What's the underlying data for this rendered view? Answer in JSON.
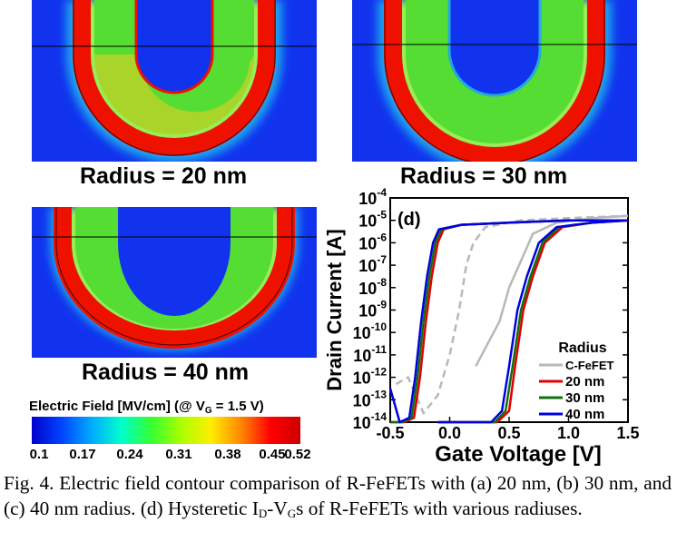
{
  "panels": [
    {
      "label": "Radius = 20 nm"
    },
    {
      "label": "Radius = 30 nm"
    },
    {
      "label": "Radius = 40 nm"
    }
  ],
  "colorbar": {
    "title_main": "Electric Field [MV/cm] (@ V",
    "title_sub": "G",
    "title_end": " = 1.5 V)",
    "ticks": [
      "0.1",
      "0.17",
      "0.24",
      "0.31",
      "0.38",
      "0.45",
      "0.52"
    ],
    "gradient": [
      "#0000cc",
      "#0044ff",
      "#00aaff",
      "#00ffcc",
      "#33ff33",
      "#aaff00",
      "#ffee00",
      "#ff8800",
      "#ff0000",
      "#cc0000"
    ]
  },
  "colors": {
    "field_bg": "#1133ee",
    "field_ring": "#ee1100",
    "field_green": "#55dd33",
    "field_cyan": "#22bbee"
  },
  "chart_data": {
    "type": "line",
    "panel_label": "(d)",
    "xlabel": "Gate Voltage [V]",
    "ylabel": "Drain Current [A]",
    "xlim": [
      -0.5,
      1.5
    ],
    "ylim_exp": [
      -14,
      -4
    ],
    "log_y": true,
    "x_ticks": [
      "-0.5",
      "0.0",
      "0.5",
      "1.0",
      "1.5"
    ],
    "y_tick_exponents": [
      "-4",
      "-5",
      "-6",
      "-7",
      "-8",
      "-9",
      "-10",
      "-11",
      "-12",
      "-13",
      "-14"
    ],
    "y_tick_base": "10",
    "legend_title": "Radius",
    "legend_position": "bottom-right",
    "series": [
      {
        "name": "C-FeFET",
        "color": "#b8b8b8",
        "dashed_backward": true,
        "forward": {
          "x": [
            0.22,
            0.32,
            0.42,
            0.5,
            0.6,
            0.7,
            0.9,
            1.2,
            1.5
          ],
          "logy": [
            -11.5,
            -10.5,
            -9.5,
            -8.0,
            -6.8,
            -5.6,
            -5.1,
            -4.9,
            -4.8
          ]
        },
        "backward": {
          "x": [
            -0.45,
            -0.35,
            -0.22,
            -0.1,
            0.0,
            0.08,
            0.14,
            0.2,
            0.3,
            0.6,
            1.0,
            1.5
          ],
          "logy": [
            -12.3,
            -12.0,
            -13.6,
            -12.8,
            -11.0,
            -9.0,
            -7.0,
            -6.0,
            -5.3,
            -5.0,
            -4.9,
            -4.8
          ]
        }
      },
      {
        "name": "20 nm",
        "color": "#e00000",
        "forward": {
          "x": [
            -0.1,
            0.2,
            0.4,
            0.5,
            0.55,
            0.62,
            0.7,
            0.8,
            0.95,
            1.2,
            1.5
          ],
          "logy": [
            -14,
            -14,
            -14,
            -13.5,
            -11.5,
            -9.0,
            -7.5,
            -6.0,
            -5.3,
            -5.1,
            -5.0
          ]
        },
        "backward": {
          "x": [
            -0.5,
            -0.38,
            -0.3,
            -0.25,
            -0.2,
            -0.15,
            -0.1,
            -0.05,
            0.1,
            0.5,
            1.0,
            1.5
          ],
          "logy": [
            -14,
            -14,
            -13.8,
            -12.0,
            -9.5,
            -7.5,
            -6.0,
            -5.4,
            -5.2,
            -5.1,
            -5.0,
            -5.0
          ]
        }
      },
      {
        "name": "30 nm",
        "color": "#107010",
        "forward": {
          "x": [
            -0.1,
            0.2,
            0.38,
            0.47,
            0.53,
            0.6,
            0.68,
            0.78,
            0.92,
            1.2,
            1.5
          ],
          "logy": [
            -14,
            -14,
            -14,
            -13.5,
            -11.5,
            -9.0,
            -7.5,
            -6.0,
            -5.3,
            -5.1,
            -5.0
          ]
        },
        "backward": {
          "x": [
            -0.5,
            -0.4,
            -0.32,
            -0.27,
            -0.22,
            -0.17,
            -0.12,
            -0.07,
            0.1,
            0.5,
            1.0,
            1.5
          ],
          "logy": [
            -14,
            -14,
            -13.8,
            -12.0,
            -9.5,
            -7.5,
            -6.0,
            -5.4,
            -5.2,
            -5.1,
            -5.0,
            -5.0
          ]
        }
      },
      {
        "name": "40 nm",
        "color": "#0000e0",
        "forward": {
          "x": [
            -0.1,
            0.2,
            0.35,
            0.44,
            0.5,
            0.57,
            0.65,
            0.75,
            0.9,
            1.2,
            1.5
          ],
          "logy": [
            -14,
            -14,
            -14,
            -13.5,
            -11.5,
            -9.0,
            -7.5,
            -6.0,
            -5.3,
            -5.1,
            -5.0
          ]
        },
        "backward": {
          "x": [
            -0.5,
            -0.42,
            -0.34,
            -0.29,
            -0.24,
            -0.19,
            -0.14,
            -0.09,
            0.1,
            0.5,
            1.0,
            1.5
          ],
          "logy": [
            -12.5,
            -14,
            -13.8,
            -12.0,
            -9.5,
            -7.5,
            -6.0,
            -5.4,
            -5.2,
            -5.1,
            -5.0,
            -5.0
          ]
        }
      }
    ]
  },
  "caption": {
    "part1": "Fig. 4. Electric field contour comparison of R-FeFETs with (a) 20 nm, (b) 30 nm, and (c) 40 nm radius. (d) Hysteretic I",
    "sub1": "D",
    "part2": "-V",
    "sub2": "G",
    "part3": "s of R-FeFETs with various radiuses."
  }
}
